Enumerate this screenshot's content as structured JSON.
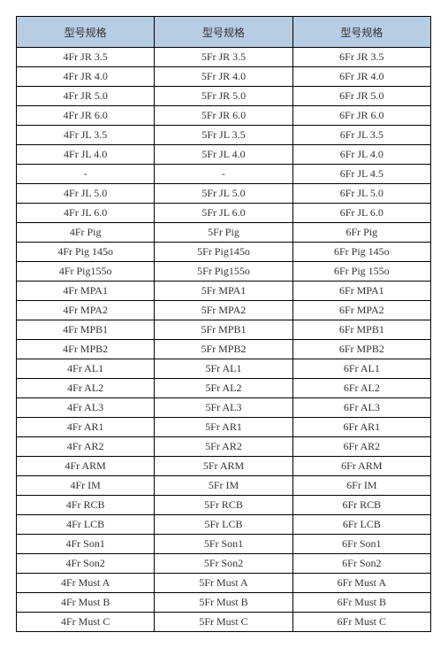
{
  "table": {
    "header_bg": "#b8cce4",
    "border_color": "#000000",
    "columns": [
      "型号规格",
      "型号规格",
      "型号规格"
    ],
    "rows": [
      [
        "4Fr JR 3.5",
        "5Fr JR 3.5",
        "6Fr JR 3.5"
      ],
      [
        "4Fr JR 4.0",
        "5Fr JR 4.0",
        "6Fr JR 4.0"
      ],
      [
        "4Fr JR 5.0",
        "5Fr JR 5.0",
        "6Fr JR 5.0"
      ],
      [
        "4Fr JR 6.0",
        "5Fr JR 6.0",
        "6Fr JR 6.0"
      ],
      [
        "4Fr JL 3.5",
        "5Fr JL 3.5",
        "6Fr JL 3.5"
      ],
      [
        "4Fr JL 4.0",
        "5Fr JL 4.0",
        "6Fr JL 4.0"
      ],
      [
        "-",
        "-",
        "6Fr JL 4.5"
      ],
      [
        "4Fr JL 5.0",
        "5Fr JL 5.0",
        "6Fr JL 5.0"
      ],
      [
        "4Fr JL 6.0",
        "5Fr JL 6.0",
        "6Fr JL 6.0"
      ],
      [
        "4Fr Pig",
        "5Fr Pig",
        "6Fr Pig"
      ],
      [
        "4Fr Pig 145o",
        "5Fr Pig145o",
        "6Fr Pig 145o"
      ],
      [
        "4Fr Pig155o",
        "5Fr Pig155o",
        "6Fr Pig 155o"
      ],
      [
        "4Fr MPA1",
        "5Fr MPA1",
        "6Fr MPA1"
      ],
      [
        "4Fr MPA2",
        "5Fr MPA2",
        "6Fr MPA2"
      ],
      [
        "4Fr MPB1",
        "5Fr MPB1",
        "6Fr MPB1"
      ],
      [
        "4Fr MPB2",
        "5Fr MPB2",
        "6Fr MPB2"
      ],
      [
        "4Fr AL1",
        "5Fr AL1",
        "6Fr AL1"
      ],
      [
        "4Fr AL2",
        "5Fr AL2",
        "6Fr AL2"
      ],
      [
        "4Fr AL3",
        "5Fr AL3",
        "6Fr AL3"
      ],
      [
        "4Fr AR1",
        "5Fr AR1",
        "6Fr AR1"
      ],
      [
        "4Fr AR2",
        "5Fr AR2",
        "6Fr AR2"
      ],
      [
        "4Fr ARM",
        "5Fr ARM",
        "6Fr ARM"
      ],
      [
        "4Fr IM",
        "5Fr IM",
        "6Fr IM"
      ],
      [
        "4Fr RCB",
        "5Fr RCB",
        "6Fr RCB"
      ],
      [
        "4Fr LCB",
        "5Fr LCB",
        "6Fr LCB"
      ],
      [
        "4Fr Son1",
        "5Fr Son1",
        "6Fr Son1"
      ],
      [
        "4Fr Son2",
        "5Fr Son2",
        "6Fr Son2"
      ],
      [
        "4Fr Must A",
        "5Fr Must A",
        "6Fr Must A"
      ],
      [
        "4Fr Must B",
        "5Fr Must B",
        "6Fr Must B"
      ],
      [
        "4Fr Must C",
        "5Fr Must C",
        "6Fr Must C"
      ]
    ]
  }
}
